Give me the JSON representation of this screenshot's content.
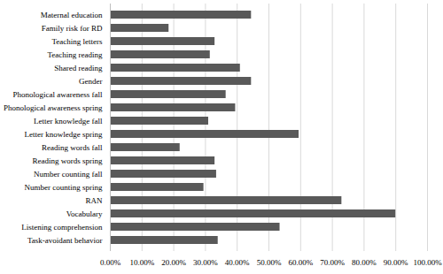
{
  "chart_data": {
    "type": "bar",
    "orientation": "horizontal",
    "categories": [
      "Maternal education",
      "Family risk for RD",
      "Teaching letters",
      "Teaching reading",
      "Shared reading",
      "Gender",
      "Phonological awareness fall",
      "Phonological awareness spring",
      "Letter knowledge fall",
      "Letter knowledge spring",
      "Reading words fall",
      "Reading words spring",
      "Number counting fall",
      "Number counting spring",
      "RAN",
      "Vocabulary",
      "Listening comprehension",
      "Task-avoidant behavior"
    ],
    "values": [
      44.5,
      18.5,
      33,
      31.5,
      41,
      44.5,
      36.5,
      39.5,
      31,
      59.5,
      22,
      33,
      33.5,
      29.5,
      73,
      90,
      53.5,
      34
    ],
    "color": "#595959",
    "xlim": [
      0,
      100
    ],
    "xticks": [
      {
        "value": 0,
        "label": "0.00%"
      },
      {
        "value": 10,
        "label": "10.00%"
      },
      {
        "value": 20,
        "label": "20.00%"
      },
      {
        "value": 30,
        "label": "30.00%"
      },
      {
        "value": 40,
        "label": "40.00%"
      },
      {
        "value": 50,
        "label": "50.00%"
      },
      {
        "value": 60,
        "label": "60.00%"
      },
      {
        "value": 70,
        "label": "70.00%"
      },
      {
        "value": 80,
        "label": "80.00%"
      },
      {
        "value": 90,
        "label": "90.00%"
      },
      {
        "value": 100,
        "label": "100.00%"
      }
    ],
    "grid": true
  }
}
